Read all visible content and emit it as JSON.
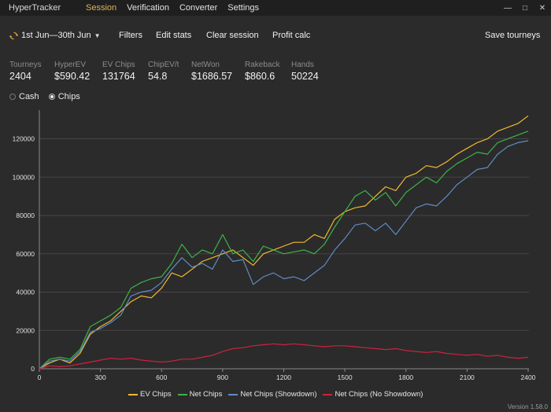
{
  "app": {
    "title": "HyperTracker"
  },
  "nav": {
    "session": "Session",
    "verification": "Verification",
    "converter": "Converter",
    "settings": "Settings"
  },
  "window": {
    "minimize": "—",
    "maximize": "□",
    "close": "✕"
  },
  "toolbar": {
    "date_range": "1st Jun—30th Jun",
    "filters": "Filters",
    "edit_stats": "Edit stats",
    "clear_session": "Clear session",
    "profit_calc": "Profit calc",
    "save_tourneys": "Save tourneys"
  },
  "stats": {
    "tourneys": {
      "label": "Tourneys",
      "value": "2404"
    },
    "hyperev": {
      "label": "HyperEV",
      "value": "$590.42"
    },
    "ev_chips": {
      "label": "EV Chips",
      "value": "131764"
    },
    "chip_ev": {
      "label": "ChipEV/t",
      "value": "54.8"
    },
    "netwon": {
      "label": "NetWon",
      "value": "$1686.57"
    },
    "rakeback": {
      "label": "Rakeback",
      "value": "$860.6"
    },
    "hands": {
      "label": "Hands",
      "value": "50224"
    }
  },
  "mode": {
    "cash": "Cash",
    "chips": "Chips",
    "selected": "chips"
  },
  "version": "Version 1.58.0",
  "colors": {
    "ev_chips": "#f2b830",
    "net_chips": "#3fb249",
    "net_showdown": "#5f8cc5",
    "net_no_showdown": "#d0213d"
  },
  "chart_data": {
    "type": "line",
    "title": "",
    "xlabel": "",
    "ylabel": "",
    "xlim": [
      0,
      2404
    ],
    "ylim": [
      0,
      135000
    ],
    "x_ticks": [
      0,
      300,
      600,
      900,
      1200,
      1500,
      1800,
      2100,
      2400
    ],
    "y_ticks": [
      0,
      20000,
      40000,
      60000,
      80000,
      100000,
      120000
    ],
    "grid": "horizontal",
    "legend_position": "bottom",
    "series": [
      {
        "name": "EV Chips",
        "color": "#f2b830",
        "points": [
          [
            0,
            0
          ],
          [
            50,
            3000
          ],
          [
            100,
            5000
          ],
          [
            150,
            3000
          ],
          [
            200,
            8000
          ],
          [
            250,
            18000
          ],
          [
            300,
            22000
          ],
          [
            350,
            25000
          ],
          [
            400,
            30000
          ],
          [
            450,
            35000
          ],
          [
            500,
            38000
          ],
          [
            550,
            37000
          ],
          [
            600,
            42000
          ],
          [
            650,
            50000
          ],
          [
            700,
            48000
          ],
          [
            750,
            52000
          ],
          [
            800,
            56000
          ],
          [
            850,
            58000
          ],
          [
            900,
            60000
          ],
          [
            950,
            62000
          ],
          [
            1000,
            58000
          ],
          [
            1050,
            54000
          ],
          [
            1100,
            60000
          ],
          [
            1150,
            62000
          ],
          [
            1200,
            64000
          ],
          [
            1250,
            66000
          ],
          [
            1300,
            66000
          ],
          [
            1350,
            70000
          ],
          [
            1400,
            68000
          ],
          [
            1450,
            78000
          ],
          [
            1500,
            82000
          ],
          [
            1550,
            84000
          ],
          [
            1600,
            85000
          ],
          [
            1650,
            90000
          ],
          [
            1700,
            95000
          ],
          [
            1750,
            93000
          ],
          [
            1800,
            100000
          ],
          [
            1850,
            102000
          ],
          [
            1900,
            106000
          ],
          [
            1950,
            105000
          ],
          [
            2000,
            108000
          ],
          [
            2050,
            112000
          ],
          [
            2100,
            115000
          ],
          [
            2150,
            118000
          ],
          [
            2200,
            120000
          ],
          [
            2250,
            124000
          ],
          [
            2300,
            126000
          ],
          [
            2350,
            128000
          ],
          [
            2400,
            132000
          ]
        ]
      },
      {
        "name": "Net Chips",
        "color": "#3fb249",
        "points": [
          [
            0,
            0
          ],
          [
            50,
            5000
          ],
          [
            100,
            6000
          ],
          [
            150,
            5000
          ],
          [
            200,
            10000
          ],
          [
            250,
            22000
          ],
          [
            300,
            25000
          ],
          [
            350,
            28000
          ],
          [
            400,
            32000
          ],
          [
            450,
            42000
          ],
          [
            500,
            45000
          ],
          [
            550,
            47000
          ],
          [
            600,
            48000
          ],
          [
            650,
            55000
          ],
          [
            700,
            65000
          ],
          [
            750,
            58000
          ],
          [
            800,
            62000
          ],
          [
            850,
            60000
          ],
          [
            900,
            70000
          ],
          [
            950,
            60000
          ],
          [
            1000,
            62000
          ],
          [
            1050,
            56000
          ],
          [
            1100,
            64000
          ],
          [
            1150,
            62000
          ],
          [
            1200,
            60000
          ],
          [
            1250,
            61000
          ],
          [
            1300,
            62000
          ],
          [
            1350,
            60000
          ],
          [
            1400,
            65000
          ],
          [
            1450,
            74000
          ],
          [
            1500,
            82000
          ],
          [
            1550,
            90000
          ],
          [
            1600,
            93000
          ],
          [
            1650,
            88000
          ],
          [
            1700,
            92000
          ],
          [
            1750,
            85000
          ],
          [
            1800,
            92000
          ],
          [
            1850,
            96000
          ],
          [
            1900,
            100000
          ],
          [
            1950,
            97000
          ],
          [
            2000,
            103000
          ],
          [
            2050,
            107000
          ],
          [
            2100,
            110000
          ],
          [
            2150,
            113000
          ],
          [
            2200,
            112000
          ],
          [
            2250,
            118000
          ],
          [
            2300,
            120000
          ],
          [
            2350,
            122000
          ],
          [
            2400,
            124000
          ]
        ]
      },
      {
        "name": "Net Chips (Showdown)",
        "color": "#5f8cc5",
        "points": [
          [
            0,
            0
          ],
          [
            50,
            4000
          ],
          [
            100,
            5000
          ],
          [
            150,
            4000
          ],
          [
            200,
            9000
          ],
          [
            250,
            19000
          ],
          [
            300,
            21000
          ],
          [
            350,
            24000
          ],
          [
            400,
            28000
          ],
          [
            450,
            38000
          ],
          [
            500,
            40000
          ],
          [
            550,
            41000
          ],
          [
            600,
            45000
          ],
          [
            650,
            52000
          ],
          [
            700,
            58000
          ],
          [
            750,
            53000
          ],
          [
            800,
            55000
          ],
          [
            850,
            52000
          ],
          [
            900,
            62000
          ],
          [
            950,
            56000
          ],
          [
            1000,
            57000
          ],
          [
            1050,
            44000
          ],
          [
            1100,
            48000
          ],
          [
            1150,
            50000
          ],
          [
            1200,
            47000
          ],
          [
            1250,
            48000
          ],
          [
            1300,
            46000
          ],
          [
            1350,
            50000
          ],
          [
            1400,
            54000
          ],
          [
            1450,
            62000
          ],
          [
            1500,
            68000
          ],
          [
            1550,
            75000
          ],
          [
            1600,
            76000
          ],
          [
            1650,
            72000
          ],
          [
            1700,
            76000
          ],
          [
            1750,
            70000
          ],
          [
            1800,
            77000
          ],
          [
            1850,
            84000
          ],
          [
            1900,
            86000
          ],
          [
            1950,
            85000
          ],
          [
            2000,
            90000
          ],
          [
            2050,
            96000
          ],
          [
            2100,
            100000
          ],
          [
            2150,
            104000
          ],
          [
            2200,
            105000
          ],
          [
            2250,
            112000
          ],
          [
            2300,
            116000
          ],
          [
            2350,
            118000
          ],
          [
            2400,
            119000
          ]
        ]
      },
      {
        "name": "Net Chips (No Showdown)",
        "color": "#d0213d",
        "points": [
          [
            0,
            0
          ],
          [
            50,
            1500
          ],
          [
            100,
            1200
          ],
          [
            150,
            1500
          ],
          [
            200,
            2500
          ],
          [
            250,
            3500
          ],
          [
            300,
            4500
          ],
          [
            350,
            5500
          ],
          [
            400,
            5000
          ],
          [
            450,
            5500
          ],
          [
            500,
            4500
          ],
          [
            550,
            4000
          ],
          [
            600,
            3500
          ],
          [
            650,
            4000
          ],
          [
            700,
            5000
          ],
          [
            750,
            5000
          ],
          [
            800,
            6000
          ],
          [
            850,
            7000
          ],
          [
            900,
            9000
          ],
          [
            950,
            10500
          ],
          [
            1000,
            11000
          ],
          [
            1050,
            12000
          ],
          [
            1100,
            12500
          ],
          [
            1150,
            13000
          ],
          [
            1200,
            12500
          ],
          [
            1250,
            13000
          ],
          [
            1300,
            12500
          ],
          [
            1350,
            12000
          ],
          [
            1400,
            11500
          ],
          [
            1450,
            12000
          ],
          [
            1500,
            12000
          ],
          [
            1550,
            11500
          ],
          [
            1600,
            11000
          ],
          [
            1650,
            10500
          ],
          [
            1700,
            10000
          ],
          [
            1750,
            10500
          ],
          [
            1800,
            9500
          ],
          [
            1850,
            9000
          ],
          [
            1900,
            8500
          ],
          [
            1950,
            9000
          ],
          [
            2000,
            8000
          ],
          [
            2050,
            7500
          ],
          [
            2100,
            7000
          ],
          [
            2150,
            7500
          ],
          [
            2200,
            6500
          ],
          [
            2250,
            7000
          ],
          [
            2300,
            6000
          ],
          [
            2350,
            5500
          ],
          [
            2400,
            6000
          ]
        ]
      }
    ]
  }
}
